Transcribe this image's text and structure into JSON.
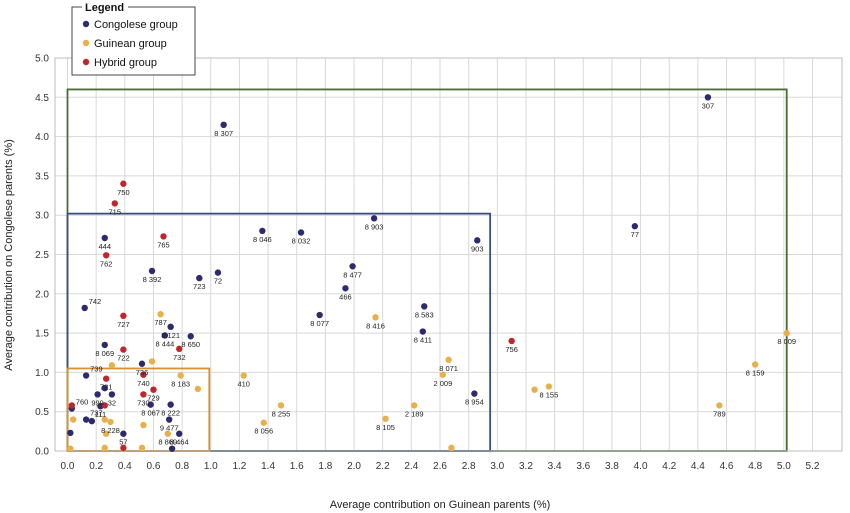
{
  "chart_data": {
    "type": "scatter",
    "xlabel": "Average contribution on Guinean parents (%)",
    "ylabel": "Average contribution on Congolese parents (%)",
    "xlim": [
      0,
      5.2
    ],
    "ylim": [
      0,
      5.0
    ],
    "x_ticks": [
      "0.0",
      "0.2",
      "0.4",
      "0.6",
      "0.8",
      "1.0",
      "1.2",
      "1.4",
      "1.6",
      "1.8",
      "2.0",
      "2.2",
      "2.4",
      "2.6",
      "2.8",
      "3.0",
      "3.2",
      "3.4",
      "3.6",
      "3.8",
      "4.0",
      "4.2",
      "4.4",
      "4.6",
      "4.8",
      "5.0",
      "5.2"
    ],
    "y_ticks": [
      "0.0",
      "0.5",
      "1.0",
      "1.5",
      "2.0",
      "2.5",
      "3.0",
      "3.5",
      "4.0",
      "4.5",
      "5.0"
    ],
    "grid": true,
    "legend": {
      "title": "Legend",
      "position": "top-left",
      "entries": [
        {
          "label": "Congolese group",
          "color": "#2b2b6e"
        },
        {
          "label": "Guinean group",
          "color": "#e8b04a"
        },
        {
          "label": "Hybrid group",
          "color": "#c0272d"
        }
      ]
    },
    "regions": [
      {
        "x": [
          0,
          5.02
        ],
        "y": [
          0,
          4.6
        ],
        "color": "#4a6b35"
      },
      {
        "x": [
          0,
          2.95
        ],
        "y": [
          0,
          3.02
        ],
        "color": "#3b4f7e"
      },
      {
        "x": [
          0,
          0.99
        ],
        "y": [
          0,
          1.05
        ],
        "color": "#d9902f"
      }
    ],
    "series": [
      {
        "name": "Congolese group",
        "color": "#2b2b6e",
        "points": [
          {
            "x": 4.47,
            "y": 4.5,
            "label": "307"
          },
          {
            "x": 1.09,
            "y": 4.15,
            "label": "8 307"
          },
          {
            "x": 2.14,
            "y": 2.96,
            "label": "8 903"
          },
          {
            "x": 3.96,
            "y": 2.86,
            "label": "77"
          },
          {
            "x": 1.36,
            "y": 2.8,
            "label": "8 046"
          },
          {
            "x": 1.63,
            "y": 2.78,
            "label": "8 032"
          },
          {
            "x": 2.86,
            "y": 2.68,
            "label": "903"
          },
          {
            "x": 0.26,
            "y": 2.71,
            "label": "444"
          },
          {
            "x": 1.99,
            "y": 2.35,
            "label": "8 477"
          },
          {
            "x": 0.59,
            "y": 2.29,
            "label": "8 392"
          },
          {
            "x": 1.05,
            "y": 2.27,
            "label": "72"
          },
          {
            "x": 0.92,
            "y": 2.2,
            "label": "723"
          },
          {
            "x": 1.94,
            "y": 2.07,
            "label": "466"
          },
          {
            "x": 2.49,
            "y": 1.84,
            "label": "8 583"
          },
          {
            "x": 0.12,
            "y": 1.82,
            "label": "742"
          },
          {
            "x": 1.76,
            "y": 1.73,
            "label": "8 077"
          },
          {
            "x": 0.72,
            "y": 1.58,
            "label": "8 121"
          },
          {
            "x": 2.48,
            "y": 1.52,
            "label": "8 411"
          },
          {
            "x": 0.68,
            "y": 1.47,
            "label": "8 444"
          },
          {
            "x": 0.86,
            "y": 1.46,
            "label": "8 650"
          },
          {
            "x": 0.26,
            "y": 1.35,
            "label": "8 069"
          },
          {
            "x": 0.52,
            "y": 1.11,
            "label": "736"
          },
          {
            "x": 0.13,
            "y": 0.96,
            "label": "739"
          },
          {
            "x": 0.26,
            "y": 0.8,
            "label": ""
          },
          {
            "x": 0.21,
            "y": 0.72,
            "label": "999"
          },
          {
            "x": 0.31,
            "y": 0.72,
            "label": "32"
          },
          {
            "x": 0.23,
            "y": 0.57,
            "label": "111"
          },
          {
            "x": 0.03,
            "y": 0.54,
            "label": "760"
          },
          {
            "x": 0.13,
            "y": 0.4,
            "label": "737"
          },
          {
            "x": 0.17,
            "y": 0.38,
            "label": ""
          },
          {
            "x": 0.58,
            "y": 0.59,
            "label": "8 067"
          },
          {
            "x": 0.72,
            "y": 0.59,
            "label": "8 222"
          },
          {
            "x": 0.71,
            "y": 0.4,
            "label": "9 477"
          },
          {
            "x": 0.39,
            "y": 0.22,
            "label": "57"
          },
          {
            "x": 0.78,
            "y": 0.22,
            "label": "8 464"
          },
          {
            "x": 2.84,
            "y": 0.73,
            "label": "8 954"
          },
          {
            "x": 0.02,
            "y": 0.23,
            "label": ""
          },
          {
            "x": 0.73,
            "y": 0.03,
            "label": ""
          }
        ]
      },
      {
        "name": "Guinean group",
        "color": "#e8b04a",
        "points": [
          {
            "x": 5.02,
            "y": 1.5,
            "label": "8 009"
          },
          {
            "x": 4.8,
            "y": 1.1,
            "label": "8 159"
          },
          {
            "x": 4.55,
            "y": 0.58,
            "label": "789"
          },
          {
            "x": 3.36,
            "y": 0.82,
            "label": "8 155"
          },
          {
            "x": 3.26,
            "y": 0.78,
            "label": ""
          },
          {
            "x": 2.66,
            "y": 1.16,
            "label": "8 071"
          },
          {
            "x": 2.62,
            "y": 0.97,
            "label": "2 009"
          },
          {
            "x": 2.42,
            "y": 0.58,
            "label": "2 189"
          },
          {
            "x": 2.22,
            "y": 0.41,
            "label": "8 105"
          },
          {
            "x": 2.15,
            "y": 1.7,
            "label": "8 416"
          },
          {
            "x": 2.68,
            "y": 0.04,
            "label": ""
          },
          {
            "x": 1.49,
            "y": 0.58,
            "label": "8 255"
          },
          {
            "x": 1.37,
            "y": 0.36,
            "label": "8 056"
          },
          {
            "x": 1.23,
            "y": 0.96,
            "label": "410"
          },
          {
            "x": 0.91,
            "y": 0.79,
            "label": ""
          },
          {
            "x": 0.79,
            "y": 0.96,
            "label": "8 183"
          },
          {
            "x": 0.65,
            "y": 1.74,
            "label": "787"
          },
          {
            "x": 0.59,
            "y": 1.14,
            "label": ""
          },
          {
            "x": 0.31,
            "y": 1.09,
            "label": ""
          },
          {
            "x": 0.3,
            "y": 0.37,
            "label": "8 228"
          },
          {
            "x": 0.26,
            "y": 0.4,
            "label": ""
          },
          {
            "x": 0.53,
            "y": 0.33,
            "label": ""
          },
          {
            "x": 0.7,
            "y": 0.22,
            "label": "8 869"
          },
          {
            "x": 0.27,
            "y": 0.22,
            "label": ""
          },
          {
            "x": 0.04,
            "y": 0.4,
            "label": ""
          },
          {
            "x": 0.26,
            "y": 0.04,
            "label": ""
          },
          {
            "x": 0.52,
            "y": 0.04,
            "label": ""
          },
          {
            "x": 0.02,
            "y": 0.03,
            "label": ""
          }
        ]
      },
      {
        "name": "Hybrid group",
        "color": "#c0272d",
        "points": [
          {
            "x": 0.39,
            "y": 3.4,
            "label": "750"
          },
          {
            "x": 0.33,
            "y": 3.15,
            "label": "715"
          },
          {
            "x": 0.67,
            "y": 2.73,
            "label": "765"
          },
          {
            "x": 0.27,
            "y": 2.49,
            "label": "762"
          },
          {
            "x": 0.39,
            "y": 1.72,
            "label": "727"
          },
          {
            "x": 0.78,
            "y": 1.3,
            "label": "732"
          },
          {
            "x": 0.39,
            "y": 1.29,
            "label": "722"
          },
          {
            "x": 0.53,
            "y": 0.97,
            "label": "740"
          },
          {
            "x": 0.27,
            "y": 0.92,
            "label": "721"
          },
          {
            "x": 0.6,
            "y": 0.78,
            "label": "729"
          },
          {
            "x": 0.53,
            "y": 0.72,
            "label": "730"
          },
          {
            "x": 0.26,
            "y": 0.58,
            "label": ""
          },
          {
            "x": 0.03,
            "y": 0.58,
            "label": ""
          },
          {
            "x": 3.1,
            "y": 1.4,
            "label": "756"
          },
          {
            "x": 0.39,
            "y": 0.04,
            "label": ""
          }
        ]
      }
    ]
  }
}
